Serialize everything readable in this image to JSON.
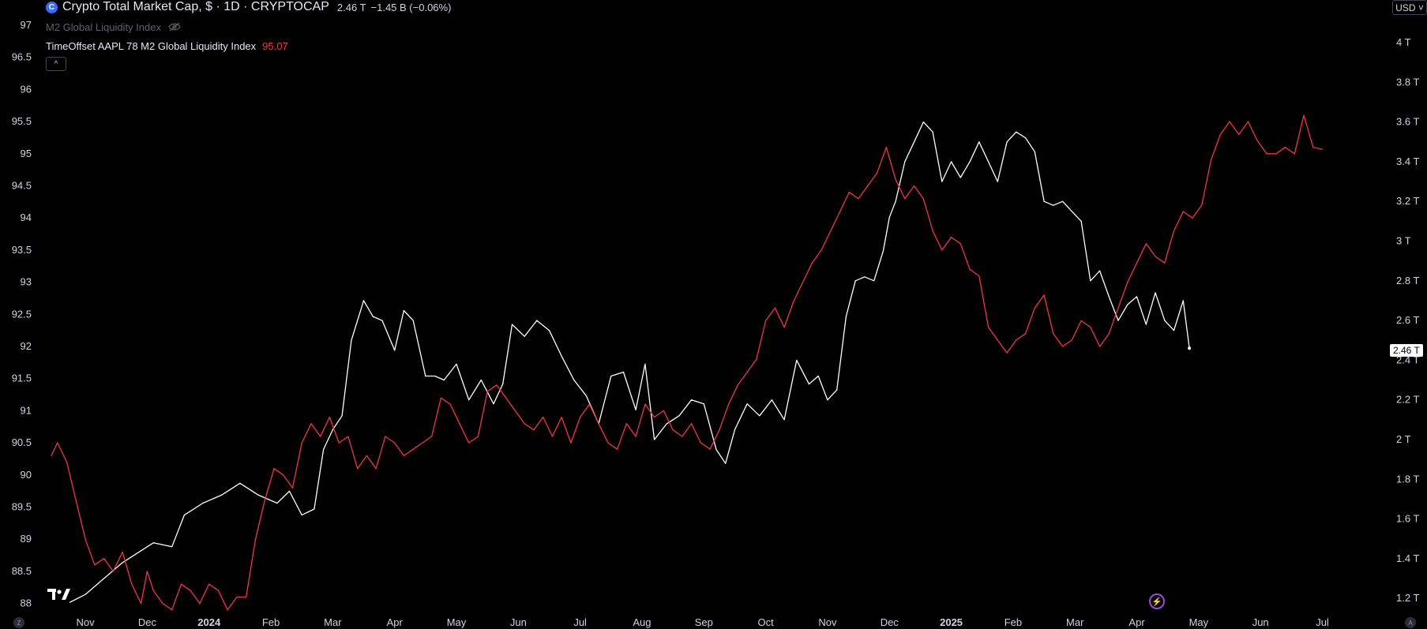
{
  "legend": {
    "symbol_icon": "cryptocap-logo-icon",
    "symbol_icon_glyph": "C",
    "main_title": "Crypto Total Market Cap, $ · 1D · CRYPTOCAP",
    "last_value": "2.46 T",
    "change": "−1.45 B (−0.06%)",
    "hidden_indicator": "M2 Global Liquidity Index",
    "offset_indicator": "TimeOffset AAPL 78 M2 Global Liquidity Index",
    "offset_indicator_value": "95.07",
    "collapse_glyph": "^"
  },
  "currency_button": "USD ˅",
  "price_tag": "2.46 T",
  "bolt_glyph": "⚡",
  "corner_left": "Z",
  "corner_right": "A",
  "colors": {
    "background": "#000000",
    "crypto_line": "#ffffff",
    "m2_line": "#f23645",
    "axis_text": "#d1d4dc",
    "accent_icon": "#3a6df0",
    "bolt": "#9c4bd8"
  },
  "chart_data": {
    "type": "line",
    "left_axis": {
      "label": "",
      "range": [
        87.8,
        97.3
      ],
      "ticks": [
        "97",
        "96.5",
        "96",
        "95.5",
        "95",
        "94.5",
        "94",
        "93.5",
        "93",
        "92.5",
        "92",
        "91.5",
        "91",
        "90.5",
        "90",
        "89.5",
        "89",
        "88.5",
        "88"
      ],
      "tick_values": [
        97,
        96.5,
        96,
        95.5,
        95,
        94.5,
        94,
        93.5,
        93,
        92.5,
        92,
        91.5,
        91,
        90.5,
        90,
        89.5,
        89,
        88.5,
        88
      ]
    },
    "right_axis": {
      "label": "",
      "ticks": [
        "4 T",
        "3.8 T",
        "3.6 T",
        "3.4 T",
        "3.2 T",
        "3 T",
        "2.8 T",
        "2.6 T",
        "2.4 T",
        "2.2 T",
        "2 T",
        "1.8 T",
        "1.6 T",
        "1.4 T",
        "1.2 T"
      ],
      "tick_values": [
        4.0,
        3.8,
        3.6,
        3.4,
        3.2,
        3.0,
        2.8,
        2.6,
        2.4,
        2.2,
        2.0,
        1.8,
        1.6,
        1.4,
        1.2
      ]
    },
    "x_axis": {
      "labels": [
        "Nov",
        "Dec",
        "2024",
        "Feb",
        "Mar",
        "Apr",
        "May",
        "Jun",
        "Jul",
        "Aug",
        "Sep",
        "Oct",
        "Nov",
        "Dec",
        "2025",
        "Feb",
        "Mar",
        "Apr",
        "May",
        "Jun",
        "Jul"
      ],
      "bold_labels": [
        "2024",
        "2025"
      ],
      "label_month_index": [
        1,
        2,
        3,
        4,
        5,
        6,
        7,
        8,
        9,
        10,
        11,
        12,
        13,
        14,
        15,
        16,
        17,
        18,
        19,
        20,
        21
      ],
      "month_range": [
        0.45,
        21.9
      ]
    },
    "series": [
      {
        "name": "Crypto Total Market Cap",
        "axis": "right",
        "unit": "T USD",
        "x_month_index": [
          0.75,
          1.0,
          1.3,
          1.6,
          1.9,
          2.1,
          2.4,
          2.6,
          2.9,
          3.2,
          3.5,
          3.8,
          4.1,
          4.3,
          4.5,
          4.7,
          4.85,
          5.0,
          5.15,
          5.3,
          5.5,
          5.65,
          5.8,
          6.0,
          6.15,
          6.3,
          6.5,
          6.65,
          6.8,
          7.0,
          7.2,
          7.4,
          7.6,
          7.75,
          7.9,
          8.1,
          8.3,
          8.5,
          8.7,
          8.9,
          9.1,
          9.3,
          9.5,
          9.7,
          9.9,
          10.05,
          10.2,
          10.4,
          10.6,
          10.8,
          11.0,
          11.2,
          11.35,
          11.5,
          11.7,
          11.9,
          12.1,
          12.3,
          12.5,
          12.7,
          12.85,
          13.0,
          13.15,
          13.3,
          13.45,
          13.6,
          13.75,
          13.9,
          14.0,
          14.1,
          14.25,
          14.4,
          14.55,
          14.7,
          14.85,
          15.0,
          15.15,
          15.3,
          15.45,
          15.6,
          15.75,
          15.9,
          16.05,
          16.2,
          16.35,
          16.5,
          16.65,
          16.8,
          16.95,
          17.1,
          17.25,
          17.4,
          17.55,
          17.7,
          17.85,
          18.0,
          18.15,
          18.3,
          18.45,
          18.6,
          18.75,
          18.85
        ],
        "values": [
          1.18,
          1.22,
          1.3,
          1.38,
          1.44,
          1.48,
          1.46,
          1.62,
          1.68,
          1.72,
          1.78,
          1.72,
          1.68,
          1.74,
          1.62,
          1.65,
          1.95,
          2.05,
          2.12,
          2.5,
          2.7,
          2.62,
          2.6,
          2.45,
          2.65,
          2.6,
          2.32,
          2.32,
          2.3,
          2.38,
          2.2,
          2.3,
          2.18,
          2.28,
          2.58,
          2.52,
          2.6,
          2.55,
          2.42,
          2.3,
          2.22,
          2.08,
          2.32,
          2.34,
          2.15,
          2.38,
          2.0,
          2.08,
          2.12,
          2.2,
          2.18,
          1.95,
          1.88,
          2.05,
          2.18,
          2.12,
          2.2,
          2.1,
          2.4,
          2.28,
          2.32,
          2.2,
          2.25,
          2.62,
          2.8,
          2.82,
          2.8,
          2.95,
          3.12,
          3.2,
          3.4,
          3.5,
          3.6,
          3.55,
          3.3,
          3.4,
          3.32,
          3.4,
          3.5,
          3.4,
          3.3,
          3.5,
          3.55,
          3.52,
          3.45,
          3.2,
          3.18,
          3.2,
          3.15,
          3.1,
          2.8,
          2.85,
          2.72,
          2.6,
          2.68,
          2.72,
          2.58,
          2.74,
          2.6,
          2.55,
          2.7,
          2.46
        ]
      },
      {
        "name": "TimeOffset AAPL 78 M2 Global Liquidity Index",
        "axis": "left",
        "unit": "",
        "x_month_index": [
          0.45,
          0.55,
          0.7,
          0.85,
          1.0,
          1.15,
          1.3,
          1.45,
          1.6,
          1.75,
          1.9,
          2.0,
          2.1,
          2.25,
          2.4,
          2.55,
          2.7,
          2.85,
          3.0,
          3.15,
          3.3,
          3.45,
          3.6,
          3.75,
          3.9,
          4.05,
          4.2,
          4.35,
          4.5,
          4.65,
          4.8,
          4.95,
          5.1,
          5.25,
          5.4,
          5.55,
          5.7,
          5.85,
          6.0,
          6.15,
          6.3,
          6.45,
          6.6,
          6.75,
          6.9,
          7.05,
          7.2,
          7.35,
          7.5,
          7.65,
          7.8,
          7.95,
          8.1,
          8.25,
          8.4,
          8.55,
          8.7,
          8.85,
          9.0,
          9.15,
          9.3,
          9.45,
          9.6,
          9.75,
          9.9,
          10.05,
          10.2,
          10.35,
          10.5,
          10.65,
          10.8,
          10.95,
          11.1,
          11.25,
          11.4,
          11.55,
          11.7,
          11.85,
          12.0,
          12.15,
          12.3,
          12.45,
          12.6,
          12.75,
          12.9,
          13.05,
          13.2,
          13.35,
          13.5,
          13.65,
          13.8,
          13.95,
          14.1,
          14.25,
          14.4,
          14.55,
          14.7,
          14.85,
          15.0,
          15.15,
          15.3,
          15.45,
          15.6,
          15.75,
          15.9,
          16.05,
          16.2,
          16.35,
          16.5,
          16.65,
          16.8,
          16.95,
          17.1,
          17.25,
          17.4,
          17.55,
          17.7,
          17.85,
          18.0,
          18.15,
          18.3,
          18.45,
          18.6,
          18.75,
          18.9,
          19.05,
          19.2,
          19.35,
          19.5,
          19.65,
          19.8,
          19.95,
          20.1,
          20.25,
          20.4,
          20.55,
          20.7,
          20.85,
          21.0
        ],
        "values": [
          90.3,
          90.5,
          90.2,
          89.6,
          89.0,
          88.6,
          88.7,
          88.5,
          88.8,
          88.3,
          88.0,
          88.5,
          88.2,
          88.0,
          87.9,
          88.3,
          88.2,
          88.0,
          88.3,
          88.2,
          87.9,
          88.1,
          88.1,
          89.0,
          89.6,
          90.1,
          90.0,
          89.8,
          90.5,
          90.8,
          90.6,
          90.9,
          90.5,
          90.6,
          90.1,
          90.3,
          90.1,
          90.6,
          90.5,
          90.3,
          90.4,
          90.5,
          90.6,
          91.2,
          91.1,
          90.8,
          90.5,
          90.6,
          91.3,
          91.4,
          91.2,
          91.0,
          90.8,
          90.7,
          90.9,
          90.6,
          90.9,
          90.5,
          90.9,
          91.1,
          90.8,
          90.5,
          90.4,
          90.8,
          90.6,
          91.1,
          90.9,
          91.0,
          90.7,
          90.6,
          90.8,
          90.5,
          90.4,
          90.7,
          91.1,
          91.4,
          91.6,
          91.8,
          92.4,
          92.6,
          92.3,
          92.7,
          93.0,
          93.3,
          93.5,
          93.8,
          94.1,
          94.4,
          94.3,
          94.5,
          94.7,
          95.1,
          94.6,
          94.3,
          94.5,
          94.3,
          93.8,
          93.5,
          93.7,
          93.6,
          93.2,
          93.1,
          92.3,
          92.1,
          91.9,
          92.1,
          92.2,
          92.6,
          92.8,
          92.2,
          92.0,
          92.1,
          92.4,
          92.3,
          92.0,
          92.2,
          92.6,
          93.0,
          93.3,
          93.6,
          93.4,
          93.3,
          93.8,
          94.1,
          94.0,
          94.2,
          94.9,
          95.3,
          95.5,
          95.3,
          95.5,
          95.2,
          95.0,
          95.0,
          95.1,
          95.0,
          95.6,
          95.1,
          95.07
        ]
      }
    ],
    "grid": false,
    "legend_position": "top-left"
  }
}
